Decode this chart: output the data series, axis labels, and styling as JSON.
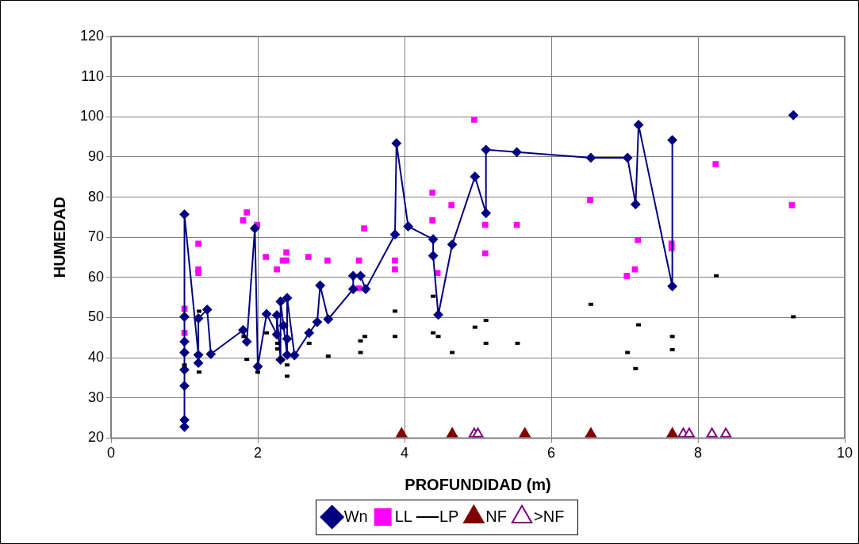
{
  "chart_data": {
    "type": "scatter",
    "xlabel": "PROFUNDIDAD (m)",
    "ylabel": "HUMEDAD",
    "xlim": [
      0,
      10
    ],
    "xticks": [
      0,
      2,
      4,
      6,
      8,
      10
    ],
    "ylim": [
      20,
      120
    ],
    "yticks": [
      20,
      30,
      40,
      50,
      60,
      70,
      80,
      90,
      100,
      110,
      120
    ],
    "grid": true,
    "legend": "bottom",
    "series": [
      {
        "name": "Wn",
        "type": "line",
        "marker": "diamond",
        "color": "#000080",
        "x": [
          1,
          1,
          1,
          1,
          1,
          1,
          1,
          1,
          1.19,
          1.19,
          1.19,
          1.31,
          1.36,
          1.8,
          1.85,
          1.96,
          2,
          2.12,
          2.26,
          2.26,
          2.31,
          2.31,
          2.35,
          2.4,
          2.4,
          2.4,
          2.5,
          2.7,
          2.81,
          2.85,
          2.96,
          3.3,
          3.3,
          3.4,
          3.47,
          3.87,
          3.89,
          4.05,
          4.39,
          4.39,
          4.46,
          4.65,
          4.96,
          5.11,
          5.11,
          5.53,
          6.54,
          7.04,
          7.15,
          7.19,
          7.65,
          7.65,
          8.5,
          9.3
        ],
        "values": [
          22.8,
          24.5,
          33,
          37,
          41.3,
          44,
          50.2,
          75.7,
          40.7,
          38.7,
          49.8,
          52,
          40.9,
          46.9,
          44,
          72.2,
          37.8,
          50.9,
          45.8,
          50.6,
          39.5,
          54,
          48,
          40.7,
          44.7,
          54.9,
          40.6,
          46.2,
          48.9,
          58,
          49.6,
          57.1,
          60.4,
          60.4,
          57.1,
          70.7,
          93.4,
          72.7,
          69.5,
          65.4,
          50.7,
          68.2,
          85.1,
          76,
          91.8,
          91.2,
          89.8,
          89.8,
          78.2,
          98,
          57.8,
          94.2,
          null,
          100.4
        ]
      },
      {
        "name": "LL",
        "type": "scatter",
        "marker": "square",
        "color": "#ff00ff",
        "x": [
          1,
          1,
          1.19,
          1.19,
          1.19,
          1.8,
          1.85,
          1.99,
          2.11,
          2.26,
          2.34,
          2.39,
          2.39,
          2.69,
          2.95,
          3.38,
          3.38,
          3.45,
          3.87,
          3.87,
          4.38,
          4.38,
          4.45,
          4.64,
          4.95,
          5.1,
          5.1,
          5.53,
          6.53,
          7.03,
          7.14,
          7.18,
          7.64,
          7.64,
          8.24,
          9.28
        ],
        "values": [
          52.2,
          46.2,
          68.4,
          62,
          61.1,
          74.2,
          76.2,
          73.1,
          65.1,
          62,
          64.2,
          66.2,
          64.2,
          65.1,
          64.2,
          64.2,
          57.3,
          72.2,
          64.2,
          62,
          81.1,
          74.2,
          61.1,
          78,
          99.3,
          73.1,
          66,
          73.1,
          79.3,
          60.4,
          62,
          69.3,
          68.4,
          67.3,
          88.2,
          78
        ]
      },
      {
        "name": "LP",
        "type": "scatter",
        "color": "#000000",
        "x": [
          1,
          1.2,
          1.2,
          1.81,
          1.85,
          2,
          2.12,
          2.27,
          2.27,
          2.32,
          2.4,
          2.4,
          2.7,
          2.96,
          3.4,
          3.46,
          3.4,
          3.87,
          3.87,
          4.39,
          4.39,
          4.46,
          4.65,
          4.96,
          5.11,
          5.11,
          5.54,
          6.54,
          7.19,
          7.04,
          7.15,
          7.65,
          7.65,
          8.25,
          9.3
        ],
        "values": [
          38.2,
          51.6,
          36.4,
          45.3,
          39.6,
          36.4,
          46.2,
          43.6,
          42.2,
          39.6,
          38.2,
          35.4,
          43.6,
          40.4,
          44.2,
          45.3,
          41.3,
          51.6,
          45.3,
          55.3,
          46.2,
          45.3,
          41.3,
          47.6,
          49.3,
          43.6,
          43.6,
          53.3,
          48.2,
          41.3,
          37.3,
          45.3,
          42,
          60.4,
          50.2
        ]
      },
      {
        "name": "NF",
        "type": "scatter",
        "marker": "triangle",
        "color": "#800000",
        "x": [
          3.96,
          4.65,
          5.64,
          6.54,
          7.65
        ],
        "values": [
          21,
          21,
          21,
          21,
          21
        ]
      },
      {
        "name": ">NF",
        "type": "scatter",
        "marker": "triangle-open",
        "color": "#800080",
        "x": [
          4.95,
          5.0,
          7.8,
          7.88,
          8.19,
          8.38
        ],
        "values": [
          21,
          21,
          21,
          21,
          21,
          21
        ]
      }
    ]
  }
}
